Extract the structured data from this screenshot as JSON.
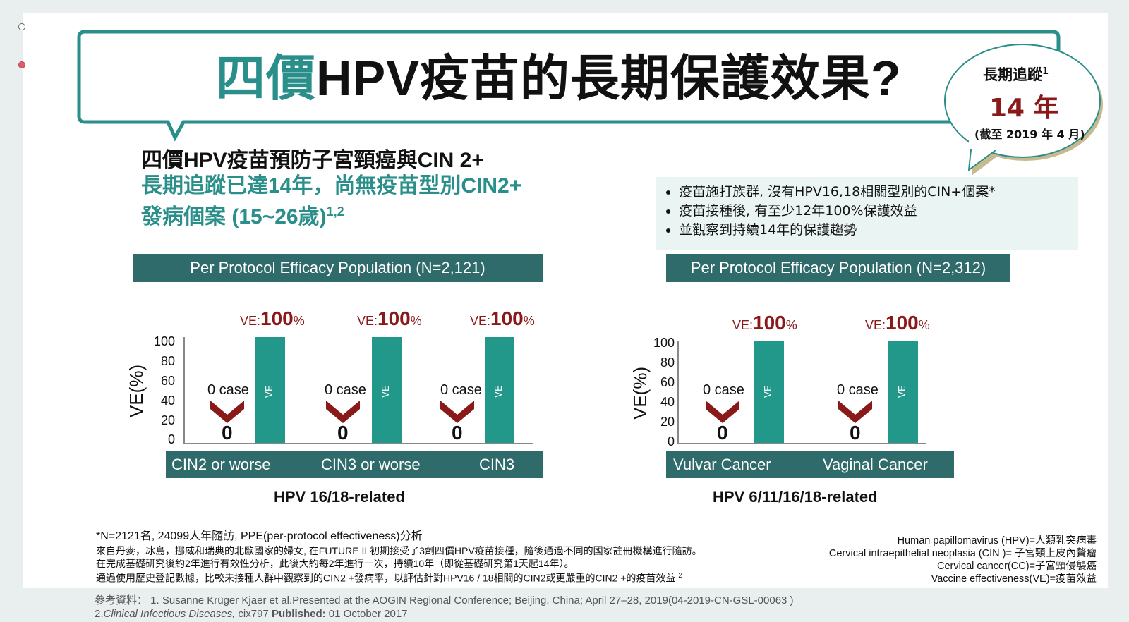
{
  "title": {
    "part1": "四價",
    "part2": "HPV疫苗的長期保護效果?"
  },
  "bubble": {
    "line1": "長期追蹤",
    "sup": "1",
    "years": "14 年",
    "note": "(截至 2019 年 4 月)"
  },
  "headline": {
    "line1": "四價HPV疫苗預防子宮頸癌與CIN 2+",
    "line2": "長期追蹤已達14年，尚無疫苗型別CIN2+",
    "line3": "發病個案 (15~26歲)",
    "line3_sup": "1,2"
  },
  "bullets": [
    "疫苗施打族群, 沒有HPV16,18相關型別的CIN+個案*",
    "疫苗接種後, 有至少12年100%保護效益",
    "並觀察到持續14年的保護趨勢"
  ],
  "chart_data": [
    {
      "type": "bar",
      "title": "Per Protocol Efficacy Population (N=2,121)",
      "ylabel": "VE(%)",
      "ylim": [
        0,
        100
      ],
      "yticks": [
        "100",
        "80",
        "60",
        "40",
        "20",
        "0"
      ],
      "xlabel": "HPV 16/18-related",
      "categories": [
        "CIN2 or worse",
        "CIN3 or worse",
        "CIN3"
      ],
      "series": [
        {
          "name": "VE",
          "values": [
            100,
            100,
            100
          ]
        }
      ],
      "cases": [
        0,
        0,
        0
      ],
      "case_label": "0 case",
      "ve_prefix": "VE:",
      "ve_value": "100",
      "ve_unit": "%"
    },
    {
      "type": "bar",
      "title": "Per Protocol Efficacy Population (N=2,312)",
      "ylabel": "VE(%)",
      "ylim": [
        0,
        100
      ],
      "yticks": [
        "100",
        "80",
        "60",
        "40",
        "20",
        "0"
      ],
      "xlabel": "HPV 6/11/16/18-related",
      "categories": [
        "Vulvar Cancer",
        "Vaginal Cancer"
      ],
      "series": [
        {
          "name": "VE",
          "values": [
            100,
            100
          ]
        }
      ],
      "cases": [
        0,
        0
      ],
      "case_label": "0 case",
      "ve_prefix": "VE:",
      "ve_value": "100",
      "ve_unit": "%"
    }
  ],
  "footnote": {
    "star": "*N=2121名, 24099人年隨訪, PPE(per-protocol effectiveness)分析",
    "lines": [
      "來自丹麥，冰島，挪威和瑞典的北歐國家的婦女, 在FUTURE II 初期接受了3劑四價HPV疫苗接種，隨後通過不同的國家註冊機構進行隨訪。",
      "在完成基礎研究後約2年進行有效性分析，此後大約每2年進行一次，持續10年（即從基礎研究第1天起14年）。",
      "通過使用歷史登記數據，比較未接種人群中觀察到的CIN2 +發病率，以評估針對HPV16 / 18相關的CIN2或更嚴重的CIN2 +的疫苗效益"
    ],
    "last_sup": "2"
  },
  "glossary": [
    "Human papillomavirus (HPV)=人類乳突病毒",
    "Cervical intraepithelial neoplasia (CIN )= 子宮頸上皮內贅瘤",
    "Cervical cancer(CC)=子宮頸侵襲癌",
    "Vaccine effectiveness(VE)=疫苗效益"
  ],
  "references": {
    "line1": "參考資料： 1. Susanne Krüger Kjaer et al.Presented at the AOGIN Regional Conference; Beijing, China; April 27–28, 2019(04-2019-CN-GSL-00063 )",
    "line2_prefix": "2.",
    "line2_journal": "Clinical Infectious Diseases,",
    "line2_mid": " cix797 ",
    "line2_pub": "Published:",
    "line2_date": " 01 October 2017"
  },
  "colors": {
    "teal": "#2a8f8a",
    "band": "#2f6b6a",
    "bar": "#22988a",
    "ve_red": "#8a1a1a"
  }
}
